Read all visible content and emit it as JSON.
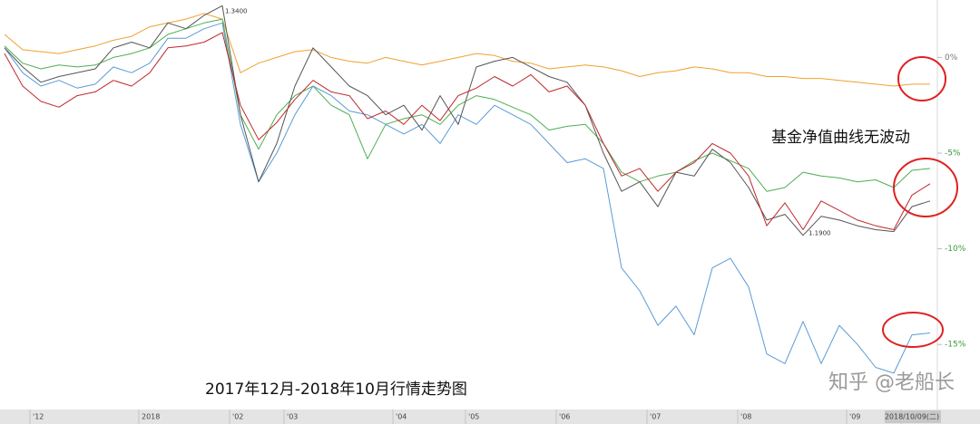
{
  "chart_data": {
    "type": "line",
    "subtitle": "2017年12月-2018年10月行情走势图",
    "annotations": [
      "基金净值曲线无波动",
      "1.3400",
      "1.1900"
    ],
    "watermark": "知乎 @老船长",
    "categories": [
      null,
      null,
      "'12",
      null,
      null,
      null,
      null,
      null,
      "2018",
      null,
      null,
      null,
      null,
      "'02",
      null,
      null,
      "'03",
      null,
      null,
      null,
      null,
      null,
      "'04",
      null,
      null,
      null,
      "'05",
      null,
      null,
      null,
      null,
      "'06",
      null,
      null,
      null,
      null,
      "'07",
      null,
      null,
      null,
      null,
      "'08",
      null,
      null,
      null,
      null,
      null,
      "'09",
      null,
      null,
      "2018/10/09(二)",
      null
    ],
    "series": [
      {
        "color": "#f0a030",
        "values": [
          1.2,
          0.4,
          0.3,
          0.2,
          0.4,
          0.6,
          0.9,
          1.1,
          1.6,
          1.8,
          2.0,
          2.3,
          2.0,
          -0.8,
          -0.3,
          0.0,
          0.3,
          0.4,
          0.0,
          -0.2,
          -0.3,
          0.0,
          -0.2,
          -0.4,
          -0.2,
          0.0,
          0.2,
          0.1,
          -0.2,
          -0.3,
          -0.6,
          -0.5,
          -0.4,
          -0.5,
          -0.7,
          -1.0,
          -0.8,
          -0.7,
          -0.5,
          -0.6,
          -0.8,
          -0.8,
          -1.0,
          -1.0,
          -1.1,
          -1.1,
          -1.2,
          -1.3,
          -1.4,
          -1.5,
          -1.4,
          -1.4
        ]
      },
      {
        "color": "#4caf50",
        "values": [
          0.6,
          -0.3,
          -0.6,
          -0.4,
          -0.5,
          -0.4,
          0.0,
          0.2,
          0.5,
          1.2,
          1.5,
          1.8,
          2.0,
          -3.0,
          -4.8,
          -3.0,
          -2.0,
          -1.5,
          -2.5,
          -3.0,
          -5.3,
          -3.5,
          -3.2,
          -3.0,
          -3.5,
          -2.5,
          -2.0,
          -2.2,
          -2.6,
          -3.0,
          -3.8,
          -3.6,
          -3.5,
          -4.5,
          -6.0,
          -6.5,
          -6.2,
          -6.0,
          -5.4,
          -5.0,
          -5.4,
          -5.8,
          -7.0,
          -6.8,
          -6.0,
          -6.2,
          -6.3,
          -6.5,
          -6.4,
          -6.8,
          -5.9,
          -5.8
        ]
      },
      {
        "color": "#5b9bd5",
        "values": [
          0.5,
          -0.8,
          -1.5,
          -1.2,
          -1.6,
          -1.4,
          -0.5,
          -0.8,
          -0.3,
          1.0,
          1.0,
          1.5,
          1.8,
          -3.5,
          -6.5,
          -5.0,
          -3.0,
          -1.5,
          -2.0,
          -2.8,
          -3.0,
          -3.5,
          -4.0,
          -3.5,
          -4.5,
          -3.0,
          -3.5,
          -2.5,
          -3.0,
          -3.5,
          -4.5,
          -5.5,
          -5.3,
          -5.8,
          -11.0,
          -12.2,
          -14.0,
          -13.0,
          -14.5,
          -11.0,
          -10.5,
          -12.0,
          -15.5,
          -16.0,
          -13.8,
          -16.0,
          -14.0,
          -15.0,
          -16.2,
          -16.5,
          -14.5,
          -14.4
        ]
      },
      {
        "color": "#555555",
        "values": [
          0.5,
          -0.5,
          -1.3,
          -1.0,
          -0.8,
          -0.6,
          0.5,
          0.8,
          0.5,
          1.8,
          1.5,
          2.2,
          2.7,
          -3.0,
          -6.5,
          -4.5,
          -1.5,
          0.5,
          -0.5,
          -1.5,
          -2.0,
          -3.0,
          -2.5,
          -3.8,
          -2.0,
          -3.5,
          -0.5,
          -0.2,
          0.0,
          -0.5,
          -1.0,
          -1.3,
          -2.5,
          -5.0,
          -7.0,
          -6.5,
          -7.8,
          -6.0,
          -6.2,
          -4.8,
          -5.5,
          -6.8,
          -8.5,
          -8.2,
          -9.3,
          -8.3,
          -8.5,
          -8.8,
          -9.0,
          -9.1,
          -7.8,
          -7.5
        ]
      },
      {
        "color": "#c0282c",
        "values": [
          0.2,
          -1.5,
          -2.3,
          -2.6,
          -2.0,
          -1.8,
          -1.2,
          -1.5,
          -0.8,
          0.5,
          0.6,
          0.8,
          1.3,
          -2.5,
          -4.3,
          -3.4,
          -2.2,
          -1.2,
          -1.8,
          -2.0,
          -3.2,
          -2.8,
          -3.5,
          -2.5,
          -3.3,
          -2.0,
          -1.6,
          -1.0,
          -1.5,
          -0.9,
          -1.8,
          -1.5,
          -2.5,
          -4.5,
          -6.2,
          -5.8,
          -7.0,
          -6.0,
          -5.5,
          -4.5,
          -5.0,
          -6.2,
          -8.8,
          -7.6,
          -9.0,
          -7.5,
          -8.0,
          -8.5,
          -8.8,
          -9.0,
          -7.2,
          -6.6
        ]
      }
    ],
    "ylim": [
      -18.4,
      3
    ],
    "yticks": [
      {
        "value": 0,
        "label": "0%"
      },
      {
        "value": -5,
        "label": "-5%"
      },
      {
        "value": -10,
        "label": "-10%"
      },
      {
        "value": -15,
        "label": "-15%"
      }
    ]
  }
}
